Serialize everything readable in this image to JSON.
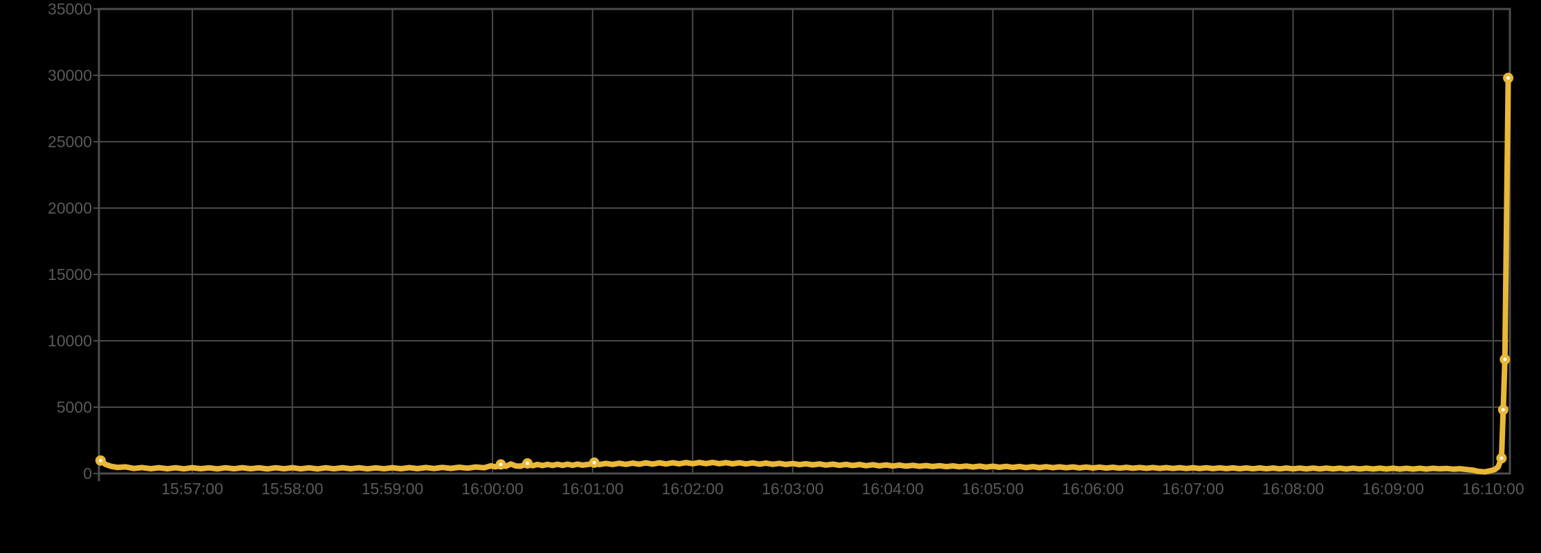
{
  "chart_data": {
    "type": "line",
    "title": "",
    "xlabel": "",
    "ylabel": "",
    "x_min": "15:56:04",
    "x_max": "16:10:10",
    "x_tick_labels": [
      "15:57:00",
      "15:58:00",
      "15:59:00",
      "16:00:00",
      "16:01:00",
      "16:02:00",
      "16:03:00",
      "16:04:00",
      "16:05:00",
      "16:06:00",
      "16:07:00",
      "16:08:00",
      "16:09:00",
      "16:10:00"
    ],
    "y_ticks": [
      0,
      5000,
      10000,
      15000,
      20000,
      25000,
      30000,
      35000
    ],
    "ylim": [
      0,
      35000
    ],
    "grid": true,
    "legend_position": "none",
    "colors": {
      "background": "#000000",
      "grid": "#4a4a4a",
      "border": "#4d4d4d",
      "tick_label": "#5a5a5a",
      "series": "#EAB839",
      "marker_fill": "#ffffff"
    },
    "series": [
      {
        "color": "#EAB839",
        "x_unit": "seconds_after_x_min",
        "points": [
          [
            1,
            980
          ],
          [
            4,
            690
          ],
          [
            7,
            550
          ],
          [
            11,
            460
          ],
          [
            16,
            500
          ],
          [
            21,
            380
          ],
          [
            26,
            450
          ],
          [
            31,
            360
          ],
          [
            36,
            440
          ],
          [
            41,
            355
          ],
          [
            46,
            430
          ],
          [
            51,
            350
          ],
          [
            56,
            435
          ],
          [
            61,
            360
          ],
          [
            66,
            425
          ],
          [
            71,
            350
          ],
          [
            76,
            430
          ],
          [
            81,
            355
          ],
          [
            86,
            440
          ],
          [
            91,
            360
          ],
          [
            96,
            425
          ],
          [
            101,
            345
          ],
          [
            106,
            430
          ],
          [
            111,
            355
          ],
          [
            116,
            435
          ],
          [
            121,
            350
          ],
          [
            126,
            425
          ],
          [
            131,
            345
          ],
          [
            136,
            430
          ],
          [
            141,
            355
          ],
          [
            146,
            440
          ],
          [
            151,
            360
          ],
          [
            156,
            430
          ],
          [
            161,
            350
          ],
          [
            166,
            425
          ],
          [
            171,
            355
          ],
          [
            176,
            435
          ],
          [
            181,
            360
          ],
          [
            186,
            445
          ],
          [
            191,
            365
          ],
          [
            196,
            450
          ],
          [
            201,
            375
          ],
          [
            206,
            460
          ],
          [
            211,
            385
          ],
          [
            216,
            470
          ],
          [
            221,
            400
          ],
          [
            226,
            490
          ],
          [
            231,
            430
          ],
          [
            235,
            580
          ],
          [
            238,
            500
          ],
          [
            241,
            680
          ],
          [
            244,
            540
          ],
          [
            247,
            720
          ],
          [
            250,
            570
          ],
          [
            253,
            550
          ],
          [
            257,
            760
          ],
          [
            260,
            590
          ],
          [
            263,
            680
          ],
          [
            266,
            600
          ],
          [
            269,
            690
          ],
          [
            272,
            610
          ],
          [
            275,
            700
          ],
          [
            278,
            615
          ],
          [
            281,
            705
          ],
          [
            284,
            620
          ],
          [
            287,
            710
          ],
          [
            290,
            630
          ],
          [
            294,
            700
          ],
          [
            297,
            820
          ],
          [
            300,
            670
          ],
          [
            304,
            760
          ],
          [
            308,
            680
          ],
          [
            312,
            770
          ],
          [
            316,
            690
          ],
          [
            320,
            780
          ],
          [
            324,
            700
          ],
          [
            328,
            800
          ],
          [
            332,
            710
          ],
          [
            336,
            805
          ],
          [
            340,
            720
          ],
          [
            344,
            815
          ],
          [
            348,
            730
          ],
          [
            352,
            825
          ],
          [
            356,
            740
          ],
          [
            360,
            830
          ],
          [
            364,
            745
          ],
          [
            368,
            835
          ],
          [
            372,
            740
          ],
          [
            376,
            820
          ],
          [
            380,
            730
          ],
          [
            384,
            810
          ],
          [
            388,
            720
          ],
          [
            392,
            795
          ],
          [
            396,
            705
          ],
          [
            400,
            780
          ],
          [
            404,
            695
          ],
          [
            408,
            765
          ],
          [
            412,
            680
          ],
          [
            416,
            750
          ],
          [
            420,
            665
          ],
          [
            424,
            735
          ],
          [
            428,
            650
          ],
          [
            432,
            720
          ],
          [
            436,
            635
          ],
          [
            440,
            705
          ],
          [
            444,
            620
          ],
          [
            448,
            690
          ],
          [
            452,
            605
          ],
          [
            456,
            675
          ],
          [
            460,
            590
          ],
          [
            464,
            660
          ],
          [
            468,
            580
          ],
          [
            472,
            645
          ],
          [
            476,
            565
          ],
          [
            480,
            630
          ],
          [
            484,
            550
          ],
          [
            488,
            615
          ],
          [
            492,
            540
          ],
          [
            496,
            600
          ],
          [
            500,
            525
          ],
          [
            504,
            590
          ],
          [
            508,
            515
          ],
          [
            512,
            575
          ],
          [
            516,
            505
          ],
          [
            520,
            565
          ],
          [
            524,
            490
          ],
          [
            528,
            555
          ],
          [
            532,
            480
          ],
          [
            536,
            545
          ],
          [
            540,
            470
          ],
          [
            544,
            535
          ],
          [
            548,
            460
          ],
          [
            552,
            525
          ],
          [
            556,
            450
          ],
          [
            560,
            515
          ],
          [
            564,
            445
          ],
          [
            568,
            510
          ],
          [
            572,
            435
          ],
          [
            576,
            500
          ],
          [
            580,
            430
          ],
          [
            584,
            495
          ],
          [
            588,
            420
          ],
          [
            592,
            485
          ],
          [
            596,
            415
          ],
          [
            600,
            480
          ],
          [
            604,
            410
          ],
          [
            608,
            470
          ],
          [
            612,
            400
          ],
          [
            616,
            465
          ],
          [
            620,
            395
          ],
          [
            624,
            455
          ],
          [
            628,
            390
          ],
          [
            632,
            450
          ],
          [
            636,
            385
          ],
          [
            640,
            445
          ],
          [
            644,
            380
          ],
          [
            648,
            440
          ],
          [
            652,
            375
          ],
          [
            656,
            435
          ],
          [
            660,
            370
          ],
          [
            664,
            430
          ],
          [
            668,
            365
          ],
          [
            672,
            425
          ],
          [
            676,
            362
          ],
          [
            680,
            420
          ],
          [
            684,
            358
          ],
          [
            688,
            418
          ],
          [
            692,
            355
          ],
          [
            696,
            415
          ],
          [
            700,
            352
          ],
          [
            704,
            412
          ],
          [
            708,
            350
          ],
          [
            712,
            410
          ],
          [
            716,
            348
          ],
          [
            720,
            408
          ],
          [
            724,
            346
          ],
          [
            728,
            406
          ],
          [
            732,
            344
          ],
          [
            736,
            404
          ],
          [
            740,
            342
          ],
          [
            744,
            402
          ],
          [
            748,
            340
          ],
          [
            752,
            400
          ],
          [
            756,
            340
          ],
          [
            760,
            398
          ],
          [
            764,
            338
          ],
          [
            768,
            396
          ],
          [
            772,
            336
          ],
          [
            776,
            395
          ],
          [
            780,
            335
          ],
          [
            784,
            393
          ],
          [
            788,
            333
          ],
          [
            792,
            392
          ],
          [
            796,
            332
          ],
          [
            800,
            390
          ],
          [
            804,
            350
          ],
          [
            808,
            380
          ],
          [
            812,
            330
          ],
          [
            816,
            360
          ],
          [
            820,
            300
          ],
          [
            824,
            250
          ],
          [
            827,
            160
          ],
          [
            831,
            120
          ],
          [
            834,
            200
          ],
          [
            837,
            300
          ],
          [
            839,
            500
          ],
          [
            841,
            1150
          ],
          [
            842,
            4800
          ],
          [
            843,
            8600
          ],
          [
            845,
            29800
          ]
        ],
        "marker_points": [
          [
            1,
            980
          ],
          [
            241,
            680
          ],
          [
            257,
            760
          ],
          [
            297,
            820
          ],
          [
            841,
            1150
          ],
          [
            842,
            4800
          ],
          [
            843,
            8600
          ],
          [
            845,
            29800
          ]
        ]
      }
    ]
  }
}
